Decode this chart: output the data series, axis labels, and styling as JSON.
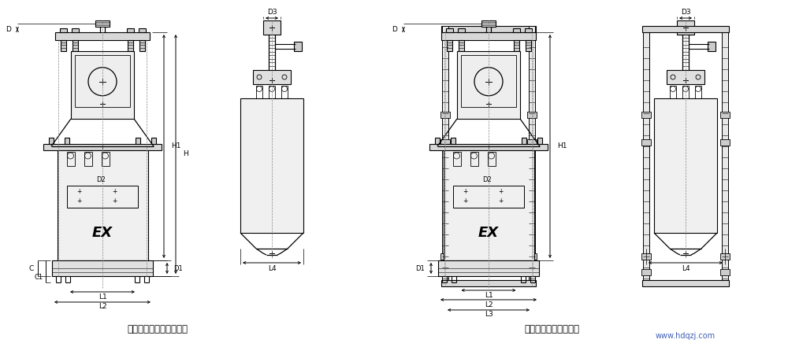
{
  "bg_color": "#ffffff",
  "line_color": "#000000",
  "dashed_color": "#888888",
  "label1": "不具有负荷弹簧等推动器",
  "label2": "具有负荷弹簧等推动器",
  "watermark": "www.hdqzj.com"
}
